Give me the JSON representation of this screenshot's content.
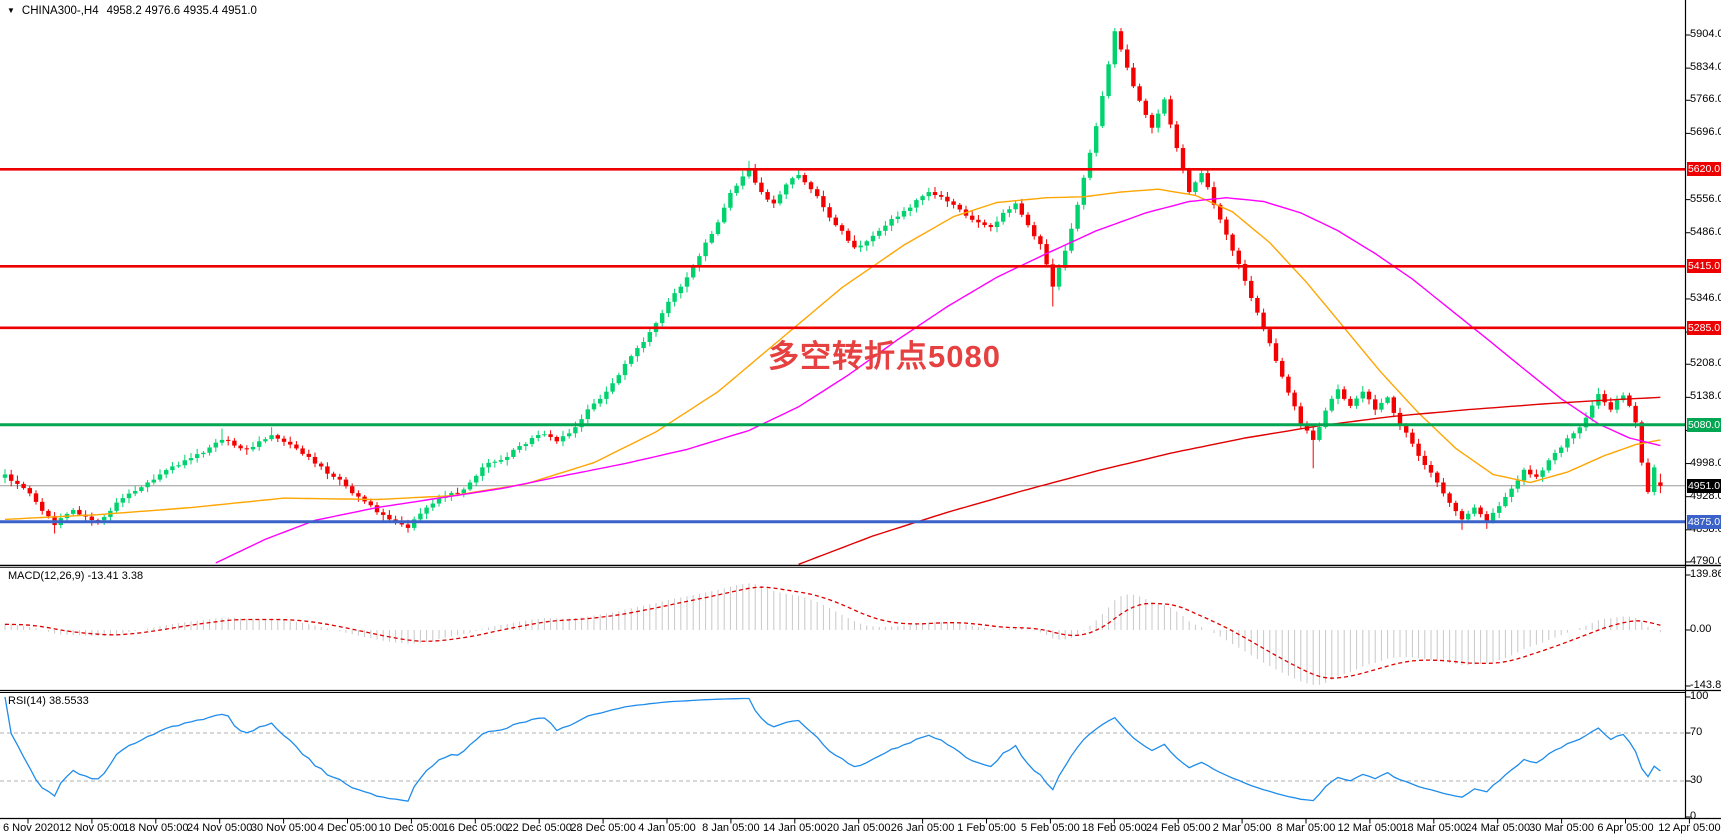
{
  "header": {
    "symbol": "CHINA300-,H4",
    "ohlc_text": "4958.2 4976.6 4935.4 4951.0"
  },
  "annotation": {
    "text": "多空转折点5080",
    "color": "#e64040"
  },
  "colors": {
    "up": "#00d26e",
    "down": "#f40000",
    "ma_fast": "#ffa500",
    "ma_mid": "#ff00ff",
    "ma_slow": "#e00000",
    "macd_hist": "#c8c8c8",
    "macd_signal": "#e00000",
    "rsi": "#1f8ceb",
    "rsi_level": "#b0b0b0",
    "current_line": "#999999",
    "current_tag": "#000000",
    "axis_line": "#000000"
  },
  "main_panel": {
    "y_ticks": [
      5904.0,
      5834.0,
      5766.0,
      5696.0,
      5556.0,
      5486.0,
      5346.0,
      5276.0,
      5208.0,
      5138.0,
      5068.0,
      4998.0,
      4928.0,
      4858.0,
      4790.0
    ],
    "levels": [
      {
        "price": 5620.0,
        "label": "5620.0",
        "color": "#ee0000",
        "width": 2.6
      },
      {
        "price": 5415.0,
        "label": "5415.0",
        "color": "#ee0000",
        "width": 2.6
      },
      {
        "price": 5285.0,
        "label": "5285.0",
        "color": "#ee0000",
        "width": 2.6
      },
      {
        "price": 5080.0,
        "label": "5080.0",
        "color": "#00a651",
        "width": 3
      },
      {
        "price": 4875.0,
        "label": "4875.0",
        "color": "#3b62c9",
        "width": 3
      }
    ],
    "current_price": {
      "value": 4951.0,
      "label": "4951.0"
    }
  },
  "chart_data": {
    "type": "candlestick",
    "symbol": "CHINA300-",
    "timeframe": "H4",
    "title": "CHINA300-,H4 4958.2 4976.6 4935.4 4951.0",
    "bars_count": 268,
    "open_first": 4968,
    "last_bar": {
      "open": 4958.2,
      "high": 4976.6,
      "low": 4935.4,
      "close": 4951.0
    },
    "y_axis": {
      "top_price": 5921,
      "bottom_price": 4784,
      "grid": false
    },
    "x_labels": [
      "6 Nov 2020",
      "12 Nov 05:00",
      "18 Nov 05:00",
      "24 Nov 05:00",
      "30 Nov 05:00",
      "4 Dec 05:00",
      "10 Dec 05:00",
      "16 Dec 05:00",
      "22 Dec 05:00",
      "28 Dec 05:00",
      "4 Jan 05:00",
      "8 Jan 05:00",
      "14 Jan 05:00",
      "20 Jan 05:00",
      "26 Jan 05:00",
      "1 Feb 05:00",
      "5 Feb 05:00",
      "18 Feb 05:00",
      "24 Feb 05:00",
      "2 Mar 05:00",
      "8 Mar 05:00",
      "12 Mar 05:00",
      "18 Mar 05:00",
      "24 Mar 05:00",
      "30 Mar 05:00",
      "6 Apr 05:00",
      "12 Apr 05:00"
    ],
    "close_path_anchors": [
      [
        0,
        4975
      ],
      [
        2,
        4955
      ],
      [
        4,
        4935
      ],
      [
        6,
        4898
      ],
      [
        8,
        4868
      ],
      [
        11,
        4900
      ],
      [
        13,
        4886
      ],
      [
        15,
        4878
      ],
      [
        17,
        4898
      ],
      [
        19,
        4925
      ],
      [
        21,
        4940
      ],
      [
        23,
        4958
      ],
      [
        25,
        4975
      ],
      [
        27,
        4992
      ],
      [
        29,
        5005
      ],
      [
        31,
        5018
      ],
      [
        33,
        5032
      ],
      [
        35,
        5048
      ],
      [
        37,
        5036
      ],
      [
        39,
        5028
      ],
      [
        41,
        5045
      ],
      [
        43,
        5058
      ],
      [
        45,
        5044
      ],
      [
        47,
        5030
      ],
      [
        49,
        5012
      ],
      [
        51,
        4992
      ],
      [
        53,
        4970
      ],
      [
        55,
        4950
      ],
      [
        58,
        4918
      ],
      [
        60,
        4895
      ],
      [
        62,
        4880
      ],
      [
        65,
        4862
      ],
      [
        68,
        4905
      ],
      [
        71,
        4930
      ],
      [
        73,
        4935
      ],
      [
        75,
        4958
      ],
      [
        77,
        4990
      ],
      [
        79,
        5002
      ],
      [
        81,
        5012
      ],
      [
        83,
        5035
      ],
      [
        85,
        5052
      ],
      [
        87,
        5060
      ],
      [
        89,
        5045
      ],
      [
        91,
        5062
      ],
      [
        93,
        5092
      ],
      [
        95,
        5125
      ],
      [
        97,
        5150
      ],
      [
        99,
        5185
      ],
      [
        101,
        5225
      ],
      [
        103,
        5255
      ],
      [
        105,
        5295
      ],
      [
        107,
        5340
      ],
      [
        109,
        5372
      ],
      [
        111,
        5415
      ],
      [
        113,
        5465
      ],
      [
        115,
        5508
      ],
      [
        117,
        5570
      ],
      [
        119,
        5605
      ],
      [
        120,
        5620
      ],
      [
        122,
        5572
      ],
      [
        124,
        5548
      ],
      [
        126,
        5588
      ],
      [
        128,
        5608
      ],
      [
        130,
        5578
      ],
      [
        132,
        5540
      ],
      [
        134,
        5502
      ],
      [
        137,
        5455
      ],
      [
        139,
        5468
      ],
      [
        141,
        5490
      ],
      [
        143,
        5515
      ],
      [
        145,
        5532
      ],
      [
        147,
        5555
      ],
      [
        149,
        5572
      ],
      [
        151,
        5562
      ],
      [
        153,
        5545
      ],
      [
        155,
        5522
      ],
      [
        157,
        5508
      ],
      [
        159,
        5498
      ],
      [
        161,
        5528
      ],
      [
        163,
        5548
      ],
      [
        165,
        5502
      ],
      [
        167,
        5462
      ],
      [
        169,
        5372
      ],
      [
        171,
        5448
      ],
      [
        173,
        5545
      ],
      [
        175,
        5655
      ],
      [
        177,
        5775
      ],
      [
        179,
        5912
      ],
      [
        181,
        5835
      ],
      [
        183,
        5765
      ],
      [
        185,
        5708
      ],
      [
        187,
        5768
      ],
      [
        189,
        5665
      ],
      [
        191,
        5572
      ],
      [
        193,
        5612
      ],
      [
        195,
        5545
      ],
      [
        197,
        5482
      ],
      [
        199,
        5420
      ],
      [
        201,
        5348
      ],
      [
        203,
        5282
      ],
      [
        205,
        5215
      ],
      [
        207,
        5148
      ],
      [
        209,
        5082
      ],
      [
        211,
        5048
      ],
      [
        213,
        5110
      ],
      [
        215,
        5155
      ],
      [
        217,
        5120
      ],
      [
        219,
        5150
      ],
      [
        221,
        5112
      ],
      [
        223,
        5138
      ],
      [
        225,
        5080
      ],
      [
        227,
        5040
      ],
      [
        229,
        4995
      ],
      [
        231,
        4958
      ],
      [
        233,
        4915
      ],
      [
        235,
        4880
      ],
      [
        237,
        4905
      ],
      [
        239,
        4875
      ],
      [
        241,
        4908
      ],
      [
        243,
        4945
      ],
      [
        245,
        4985
      ],
      [
        247,
        4970
      ],
      [
        249,
        5005
      ],
      [
        251,
        5032
      ],
      [
        253,
        5062
      ],
      [
        255,
        5095
      ],
      [
        257,
        5145
      ],
      [
        259,
        5112
      ],
      [
        260,
        5132
      ],
      [
        261,
        5142
      ],
      [
        262,
        5120
      ],
      [
        263,
        5085
      ],
      [
        264,
        5000
      ],
      [
        265,
        4938
      ],
      [
        266,
        4990
      ],
      [
        267,
        4951
      ]
    ],
    "wick_overrides": [
      [
        8,
        "low",
        4850
      ],
      [
        35,
        "high",
        5072
      ],
      [
        43,
        "high",
        5075
      ],
      [
        65,
        "low",
        4852
      ],
      [
        120,
        "high",
        5638
      ],
      [
        128,
        "high",
        5622
      ],
      [
        169,
        "low",
        5330
      ],
      [
        179,
        "high",
        5928
      ],
      [
        211,
        "low",
        4988
      ],
      [
        235,
        "low",
        4858
      ],
      [
        239,
        "low",
        4860
      ],
      [
        257,
        "high",
        5158
      ]
    ],
    "moving_averages": [
      {
        "name": "ma-fast-orange",
        "color": "#ffa500",
        "anchors": [
          [
            0,
            4880
          ],
          [
            15,
            4890
          ],
          [
            30,
            4905
          ],
          [
            45,
            4925
          ],
          [
            60,
            4922
          ],
          [
            72,
            4930
          ],
          [
            84,
            4955
          ],
          [
            95,
            5000
          ],
          [
            105,
            5065
          ],
          [
            115,
            5150
          ],
          [
            125,
            5260
          ],
          [
            135,
            5370
          ],
          [
            145,
            5460
          ],
          [
            153,
            5520
          ],
          [
            160,
            5550
          ],
          [
            168,
            5560
          ],
          [
            174,
            5562
          ],
          [
            180,
            5572
          ],
          [
            186,
            5578
          ],
          [
            192,
            5565
          ],
          [
            198,
            5530
          ],
          [
            204,
            5465
          ],
          [
            210,
            5380
          ],
          [
            216,
            5285
          ],
          [
            222,
            5190
          ],
          [
            228,
            5105
          ],
          [
            234,
            5030
          ],
          [
            240,
            4975
          ],
          [
            246,
            4958
          ],
          [
            252,
            4980
          ],
          [
            258,
            5015
          ],
          [
            263,
            5038
          ],
          [
            267,
            5048
          ]
        ]
      },
      {
        "name": "ma-medium-magenta",
        "color": "#ff00ff",
        "anchors": [
          [
            34,
            4788
          ],
          [
            42,
            4838
          ],
          [
            50,
            4878
          ],
          [
            60,
            4905
          ],
          [
            70,
            4925
          ],
          [
            80,
            4945
          ],
          [
            90,
            4972
          ],
          [
            100,
            4998
          ],
          [
            110,
            5028
          ],
          [
            120,
            5068
          ],
          [
            128,
            5118
          ],
          [
            136,
            5185
          ],
          [
            144,
            5260
          ],
          [
            152,
            5330
          ],
          [
            160,
            5392
          ],
          [
            168,
            5442
          ],
          [
            176,
            5490
          ],
          [
            184,
            5528
          ],
          [
            191,
            5552
          ],
          [
            197,
            5560
          ],
          [
            203,
            5552
          ],
          [
            209,
            5528
          ],
          [
            215,
            5490
          ],
          [
            221,
            5442
          ],
          [
            227,
            5388
          ],
          [
            233,
            5325
          ],
          [
            239,
            5262
          ],
          [
            245,
            5198
          ],
          [
            251,
            5135
          ],
          [
            257,
            5082
          ],
          [
            262,
            5052
          ],
          [
            267,
            5036
          ]
        ]
      },
      {
        "name": "ma-slow-red",
        "color": "#e00000",
        "anchors": [
          [
            128,
            4785
          ],
          [
            140,
            4845
          ],
          [
            152,
            4895
          ],
          [
            164,
            4940
          ],
          [
            176,
            4982
          ],
          [
            188,
            5020
          ],
          [
            200,
            5052
          ],
          [
            212,
            5078
          ],
          [
            224,
            5098
          ],
          [
            236,
            5112
          ],
          [
            248,
            5124
          ],
          [
            258,
            5132
          ],
          [
            267,
            5138
          ]
        ]
      }
    ],
    "indicators": {
      "macd": {
        "name": "MACD",
        "params": [
          12,
          26,
          9
        ],
        "label_full": "MACD(12,26,9) -13.41 3.38",
        "current_macd": -13.41,
        "current_signal": 3.38,
        "axis_ticks": [
          "139.86",
          "0.00",
          "-143.82"
        ]
      },
      "rsi": {
        "name": "RSI",
        "period": 14,
        "label_full": "RSI(14) 38.5533",
        "current": 38.5533,
        "axis_ticks": [
          "100",
          "70",
          "30",
          "0"
        ],
        "levels": [
          70,
          30
        ]
      }
    }
  }
}
